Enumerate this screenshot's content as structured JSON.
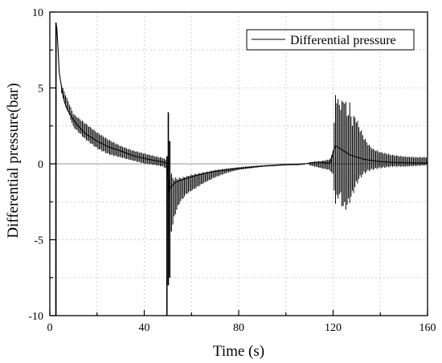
{
  "chart_data": {
    "type": "line",
    "title": "",
    "xlabel": "Time (s)",
    "ylabel": "Differential pressure(bar)",
    "xlim": [
      0,
      160
    ],
    "ylim": [
      -10,
      10
    ],
    "xticks": [
      0,
      40,
      80,
      120,
      160
    ],
    "yticks": [
      -10,
      -5,
      0,
      5,
      10
    ],
    "xtick_labels": [
      "0",
      "40",
      "80",
      "120",
      "160"
    ],
    "ytick_labels": [
      "-10",
      "-5",
      "0",
      "5",
      "10"
    ],
    "grid": true,
    "grid_style": "dotted",
    "zero_line": true,
    "legend": {
      "position": "top-right",
      "entries": [
        "Differential pressure"
      ]
    },
    "series": [
      {
        "name": "Differential pressure",
        "color": "#000000",
        "x": [
          2.5,
          2.6,
          3,
          3.5,
          4,
          5,
          6,
          7,
          8,
          10,
          12,
          15,
          18,
          20,
          25,
          30,
          35,
          40,
          45,
          48,
          49.5,
          50,
          50.5,
          51,
          52,
          53,
          55,
          58,
          60,
          65,
          70,
          75,
          80,
          85,
          90,
          95,
          100,
          105,
          108,
          110,
          112,
          115,
          118,
          119,
          120,
          121,
          122,
          123,
          124,
          125,
          126,
          127,
          128,
          129,
          130,
          131,
          132,
          133,
          135,
          137,
          140,
          145,
          150,
          155,
          160
        ],
        "y": [
          -10,
          9.3,
          8.9,
          7.5,
          6,
          5.0,
          4.2,
          3.7,
          3.4,
          2.9,
          2.5,
          2.0,
          1.7,
          1.5,
          1.1,
          0.85,
          0.55,
          0.35,
          0.2,
          0.12,
          0.05,
          -0.3,
          -1.9,
          -1.6,
          -1.4,
          -1.25,
          -1.1,
          -0.95,
          -0.85,
          -0.65,
          -0.5,
          -0.4,
          -0.3,
          -0.22,
          -0.15,
          -0.1,
          -0.05,
          -0.02,
          0.0,
          0.05,
          0.1,
          0.1,
          0.05,
          0.1,
          0.8,
          1.2,
          1.1,
          1.0,
          0.9,
          0.8,
          0.7,
          0.6,
          0.55,
          0.5,
          0.45,
          0.4,
          0.35,
          0.3,
          0.25,
          0.2,
          0.15,
          0.1,
          0.08,
          0.06,
          0.05
        ],
        "oscillation_envelope": [
          {
            "x": [
              5,
              10,
              15,
              20,
              25,
              30,
              35,
              40,
              45,
              48,
              49
            ],
            "upper": [
              5.2,
              3.3,
              2.7,
              2.1,
              1.6,
              1.2,
              0.9,
              0.7,
              0.5,
              0.4,
              0.3
            ],
            "lower": [
              4.6,
              2.4,
              1.6,
              1.0,
              0.6,
              0.4,
              0.2,
              0.0,
              -0.1,
              -0.2,
              -0.3
            ]
          },
          {
            "x": [
              51,
              52,
              53,
              55,
              58,
              60,
              65,
              70,
              75,
              80,
              85,
              90,
              95,
              100,
              105,
              108
            ],
            "upper": [
              -0.4,
              -0.8,
              -0.9,
              -0.9,
              -0.8,
              -0.7,
              -0.55,
              -0.4,
              -0.3,
              -0.22,
              -0.15,
              -0.1,
              -0.05,
              0.0,
              0.0,
              0.05
            ],
            "lower": [
              -4.8,
              -4.2,
              -3.4,
              -2.6,
              -2.0,
              -1.8,
              -1.3,
              -0.9,
              -0.6,
              -0.4,
              -0.3,
              -0.2,
              -0.15,
              -0.1,
              -0.1,
              -0.05
            ]
          },
          {
            "x": [
              110,
              115,
              118,
              119,
              120,
              121,
              122,
              123,
              124,
              125,
              126,
              127,
              128,
              129,
              130,
              131,
              132,
              133,
              135,
              137,
              140,
              145,
              150,
              155,
              160
            ],
            "upper": [
              0.1,
              0.2,
              0.3,
              0.4,
              1.0,
              4.8,
              4.3,
              4.0,
              4.2,
              4.6,
              3.3,
              4.1,
              2.8,
              3.3,
              3.0,
              2.5,
              2.2,
              1.8,
              1.3,
              1.0,
              0.8,
              0.6,
              0.5,
              0.45,
              0.45
            ],
            "lower": [
              -0.1,
              -0.3,
              -0.4,
              -0.5,
              -0.8,
              -2.9,
              -2.3,
              -2.2,
              -3.0,
              -3.1,
              -2.9,
              -2.6,
              -2.2,
              -1.8,
              -1.4,
              -1.1,
              -0.9,
              -0.7,
              -0.5,
              -0.4,
              -0.3,
              -0.2,
              -0.2,
              -0.15,
              -0.1
            ]
          }
        ],
        "spikes": [
          {
            "x": 2.6,
            "from": -10,
            "to": 9.3
          },
          {
            "x": 49.6,
            "from": -10,
            "to": 0.5
          },
          {
            "x": 50.2,
            "from": -8,
            "to": 3.4
          },
          {
            "x": 50.8,
            "from": -7.5,
            "to": 1.5
          }
        ]
      }
    ]
  }
}
